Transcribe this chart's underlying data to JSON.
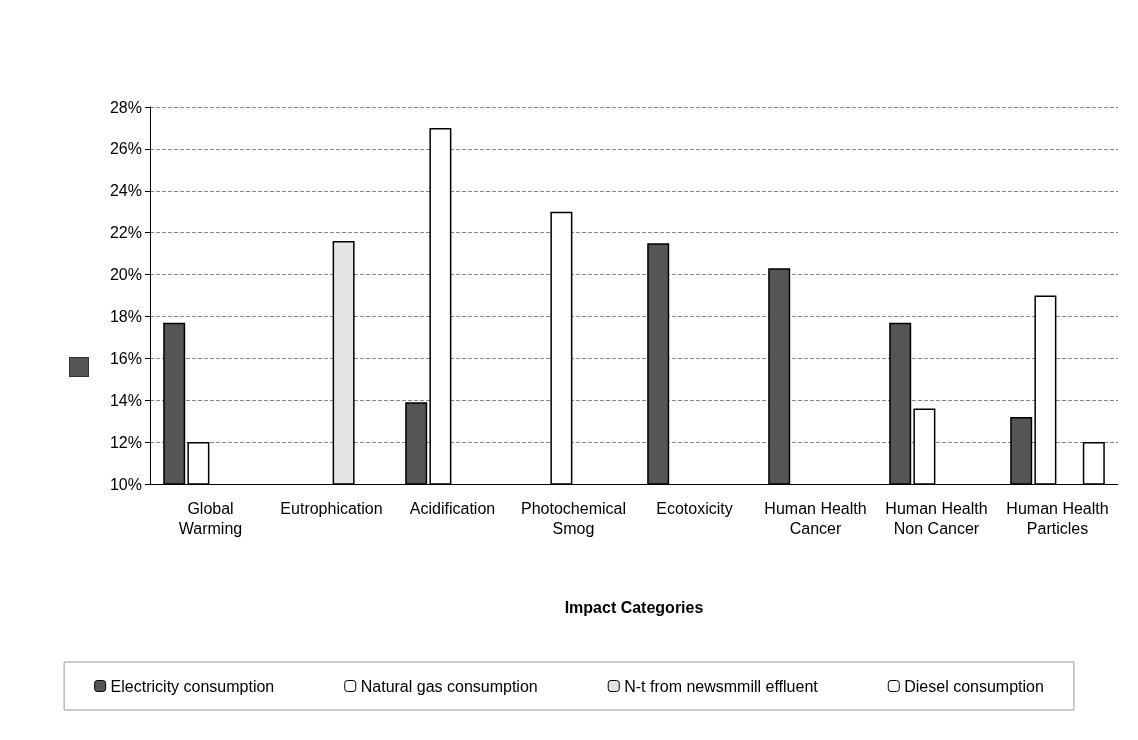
{
  "chart_data": {
    "type": "bar",
    "xlabel": "Impact Categories",
    "categories": [
      "Global\nWarming",
      "Eutrophication",
      "Acidification",
      "Photochemical\nSmog",
      "Ecotoxicity",
      "Human Health\nCancer",
      "Human Health\nNon Cancer",
      "Human Health\nParticles"
    ],
    "series": [
      {
        "name": "Electricity consumption",
        "color": "#555555",
        "values": [
          17.7,
          null,
          13.9,
          null,
          21.5,
          20.3,
          17.7,
          13.2
        ]
      },
      {
        "name": "Natural gas consumption",
        "color": "#ffffff",
        "values": [
          12,
          null,
          27,
          23,
          null,
          null,
          13.6,
          19
        ]
      },
      {
        "name": "N-t from newsmmill effluent",
        "color": "#e4e4e4",
        "values": [
          null,
          21.6,
          null,
          null,
          null,
          null,
          null,
          null
        ]
      },
      {
        "name": "Diesel consumption",
        "color": "#ffffff",
        "values": [
          null,
          null,
          null,
          null,
          null,
          null,
          null,
          12
        ]
      }
    ],
    "ylim": [
      10,
      28
    ],
    "yticks": [
      {
        "value": 10,
        "label": "10%"
      },
      {
        "value": 12,
        "label": "12%"
      },
      {
        "value": 14,
        "label": "14%"
      },
      {
        "value": 16,
        "label": "16%"
      },
      {
        "value": 18,
        "label": "18%"
      },
      {
        "value": 20,
        "label": "20%"
      },
      {
        "value": 22,
        "label": "22%"
      },
      {
        "value": 24,
        "label": "24%"
      },
      {
        "value": 26,
        "label": "26%"
      },
      {
        "value": 28,
        "label": "28%"
      }
    ],
    "grid": "y",
    "legend": "bottom"
  }
}
